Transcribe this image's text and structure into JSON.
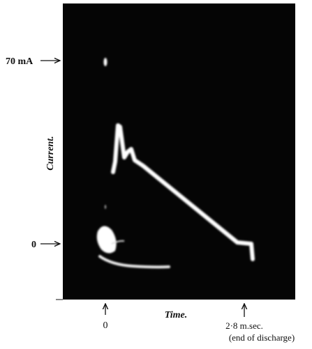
{
  "figure": {
    "y_labels": {
      "top": "70 mA",
      "zero": "0"
    },
    "y_axis_title": "Current.",
    "x_axis_title": "Time.",
    "x_labels": {
      "start": "0",
      "end": "2·8 m.sec.",
      "end_note": "(end of discharge)"
    }
  }
}
